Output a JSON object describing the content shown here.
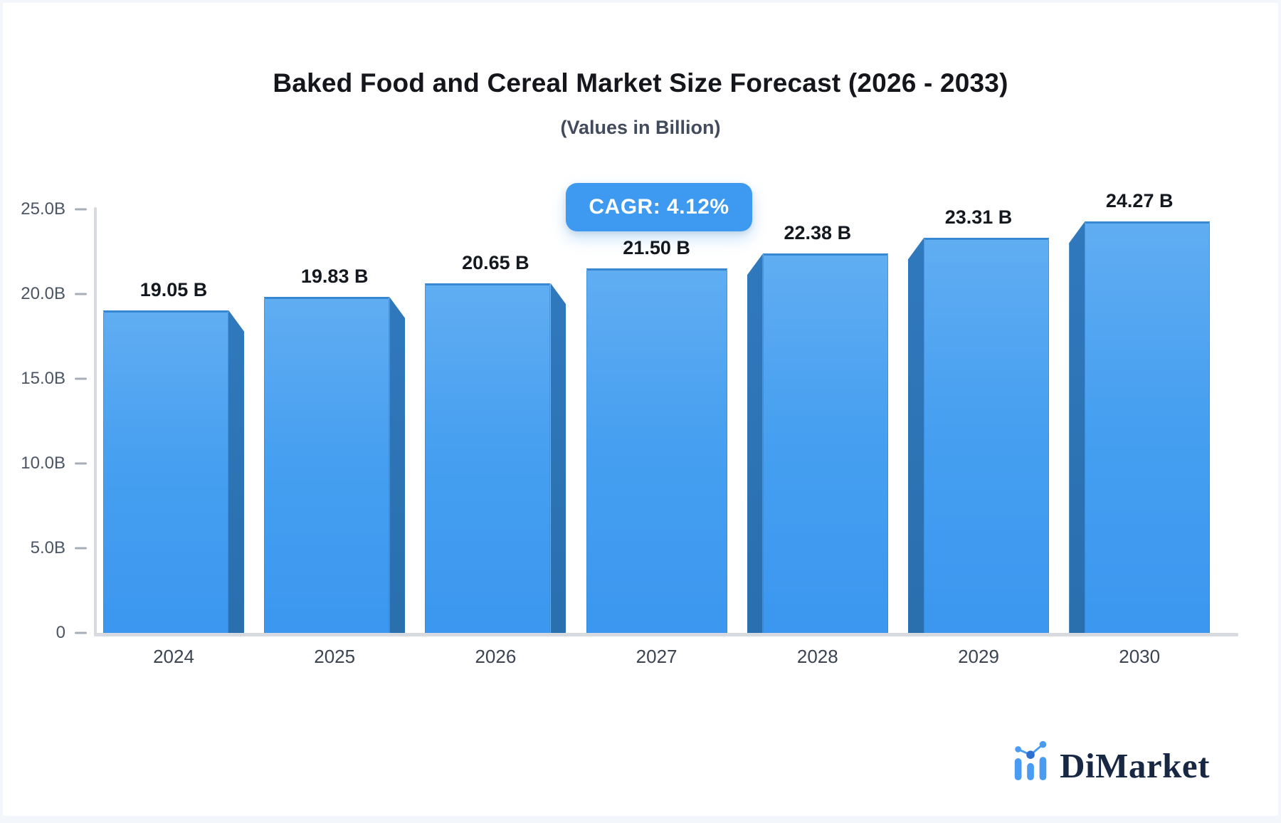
{
  "header": {
    "title": "Baked Food and Cereal Market Size Forecast (2026 - 2033)",
    "subtitle": "(Values in Billion)"
  },
  "badge": {
    "label": "CAGR: 4.12%"
  },
  "brand": {
    "name": "DiMarket",
    "icon": "bar-chart-logo-icon"
  },
  "colors": {
    "accent": "#3d9af0",
    "bar_top": "#60adf2",
    "bar_bottom": "#3b97ef",
    "bar_side": "#2d74b6",
    "axis": "#d7dbe0",
    "tick_text": "#4b5563",
    "value_text": "#14181f",
    "brand_navy": "#182743"
  },
  "chart_data": {
    "type": "bar",
    "title": "Baked Food and Cereal Market Size Forecast (2026 - 2033)",
    "subtitle": "(Values in Billion)",
    "categories": [
      "2024",
      "2025",
      "2026",
      "2027",
      "2028",
      "2029",
      "2030"
    ],
    "values": [
      19.05,
      19.83,
      20.65,
      21.5,
      22.38,
      23.31,
      24.27
    ],
    "labels": [
      "19.05 B",
      "19.83 B",
      "20.65 B",
      "21.50 B",
      "22.38 B",
      "23.31 B",
      "24.27 B"
    ],
    "xlabel": "",
    "ylabel": "",
    "ylim": [
      0,
      25
    ],
    "yticks": [
      {
        "value": 0,
        "label": "0"
      },
      {
        "value": 5,
        "label": "5.0B"
      },
      {
        "value": 10,
        "label": "10.0B"
      },
      {
        "value": 15,
        "label": "15.0B"
      },
      {
        "value": 20,
        "label": "20.0B"
      },
      {
        "value": 25,
        "label": "25.0B"
      }
    ],
    "grid": false,
    "legend": false,
    "annotation": "CAGR: 4.12%",
    "bar_style": "3d-chamfered",
    "unit": "Billion"
  }
}
